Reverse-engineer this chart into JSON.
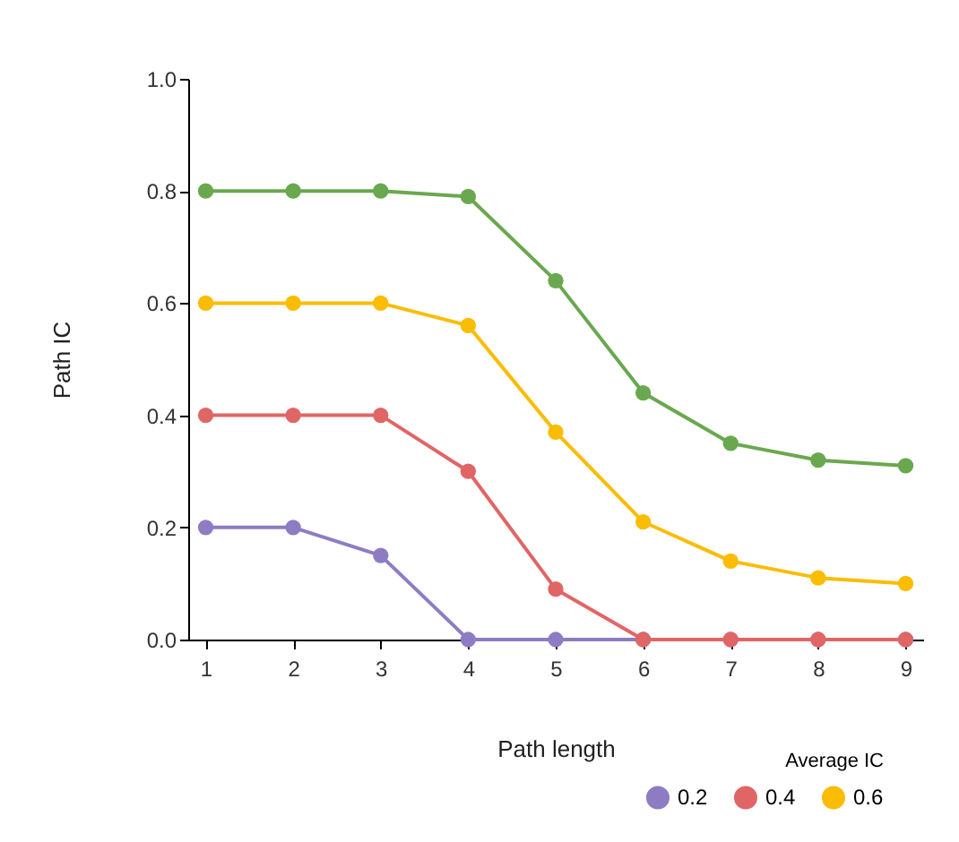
{
  "chart_data": {
    "type": "line",
    "xlabel": "Path length",
    "ylabel": "Path IC",
    "legend_title": "Average IC",
    "x": [
      1,
      2,
      3,
      4,
      5,
      6,
      7,
      8,
      9
    ],
    "xlim": [
      0.8,
      9.2
    ],
    "xticks": [
      1,
      2,
      3,
      4,
      5,
      6,
      7,
      8,
      9
    ],
    "ylim": [
      0,
      1
    ],
    "yticks": [
      {
        "value": 0,
        "label": "0.0"
      },
      {
        "value": 0.2,
        "label": "0.2"
      },
      {
        "value": 0.4,
        "label": "0.4"
      },
      {
        "value": 0.6,
        "label": "0.6"
      },
      {
        "value": 0.8,
        "label": "0.8"
      },
      {
        "value": 1,
        "label": "1.0"
      }
    ],
    "grid": false,
    "marker": "circle",
    "legend": "bottom right",
    "series": [
      {
        "name": "0.2",
        "color": "#8e7cc3",
        "values": [
          0.2,
          0.2,
          0.15,
          0,
          0,
          0,
          0,
          0,
          0
        ]
      },
      {
        "name": "0.4",
        "color": "#e06666",
        "values": [
          0.4,
          0.4,
          0.4,
          0.3,
          0.09,
          0,
          0,
          0,
          0
        ]
      },
      {
        "name": "0.6",
        "color": "#fbbc04",
        "values": [
          0.6,
          0.6,
          0.6,
          0.56,
          0.37,
          0.21,
          0.14,
          0.11,
          0.1
        ]
      },
      {
        "color": "#6aa84f",
        "values": [
          0.8,
          0.8,
          0.8,
          0.79,
          0.64,
          0.44,
          0.35,
          0.32,
          0.31
        ]
      }
    ]
  }
}
